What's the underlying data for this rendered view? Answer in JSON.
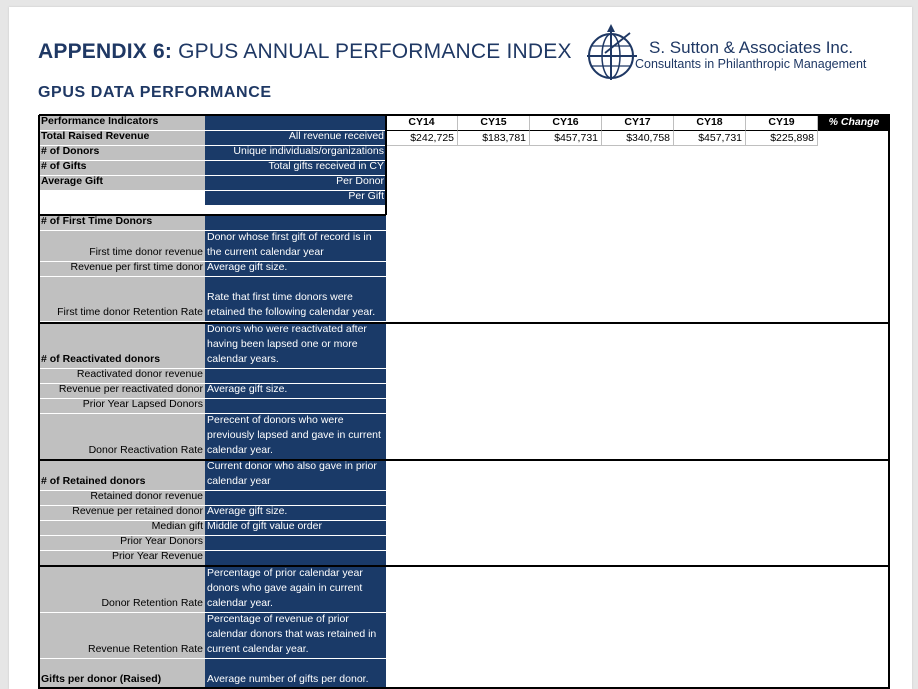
{
  "header": {
    "title_bold": "APPENDIX 6:",
    "title_rest": " GPUS ANNUAL PERFORMANCE INDEX",
    "subtitle": "GPUS DATA PERFORMANCE"
  },
  "brand": {
    "name": "S. Sutton & Associates Inc.",
    "tagline": "Consultants in Philanthropic Management",
    "logo_icon": "globe-compass-icon"
  },
  "colors": {
    "navy": "#1a3a68",
    "label_gray": "#c0c0c0",
    "title_blue": "#1f3864"
  },
  "table": {
    "col_header_label": "Performance Indicators",
    "years": [
      "CY14",
      "CY15",
      "CY16",
      "CY17",
      "CY18",
      "CY19"
    ],
    "change_label": "% Change",
    "rows": [
      {
        "label": "Total Raised Revenue",
        "desc": "All revenue received",
        "values": [
          "$242,725",
          "$183,781",
          "$457,731",
          "$340,758",
          "$457,731",
          "$225,898"
        ]
      },
      {
        "label": "# of Donors",
        "desc": "Unique individuals/organizations"
      },
      {
        "label": "# of Gifts",
        "desc": "Total gifts received in CY"
      },
      {
        "label": "Average Gift",
        "desc": "Per Donor"
      },
      {
        "label": "",
        "desc": "Per Gift"
      },
      {
        "label": "# of First Time Donors",
        "desc": ""
      },
      {
        "label": "First time donor revenue",
        "desc": "Donor whose first  gift of record is in\nthe current calendar year"
      },
      {
        "label": "Revenue per first time donor",
        "desc": "Average gift size."
      },
      {
        "label": "First time donor Retention Rate",
        "desc": "Rate that first time donors were\nretained the following calendar year."
      },
      {
        "label": "# of Reactivated donors",
        "desc": "Donors who were reactivated after\nhaving been lapsed one or more\ncalendar years."
      },
      {
        "label": "Reactivated donor revenue",
        "desc": ""
      },
      {
        "label": "Revenue per reactivated donor",
        "desc": "Average gift size."
      },
      {
        "label": "Prior Year Lapsed Donors",
        "desc": ""
      },
      {
        "label": "Donor Reactivation Rate",
        "desc": "Perecent of donors who were\npreviously lapsed and gave in current\ncalendar year."
      },
      {
        "label": "# of Retained donors",
        "desc": "Current donor who also gave in prior\ncalendar year"
      },
      {
        "label": "Retained donor revenue",
        "desc": ""
      },
      {
        "label": "Revenue per retained donor",
        "desc": "Average gift size."
      },
      {
        "label": "Median gift",
        "desc": "Middle of gift value order"
      },
      {
        "label": "Prior Year Donors",
        "desc": ""
      },
      {
        "label": "Prior Year Revenue",
        "desc": ""
      },
      {
        "label": "Donor Retention Rate",
        "desc": "Percentage of prior calendar year\ndonors who gave again in current\ncalendar year."
      },
      {
        "label": "Revenue Retention Rate",
        "desc": "Percentage of revenue of prior\ncalendar donors that was retained in\ncurrent calendar year."
      },
      {
        "label": "Gifts per donor (Raised)",
        "desc": "Average number of gifts per donor."
      }
    ]
  }
}
